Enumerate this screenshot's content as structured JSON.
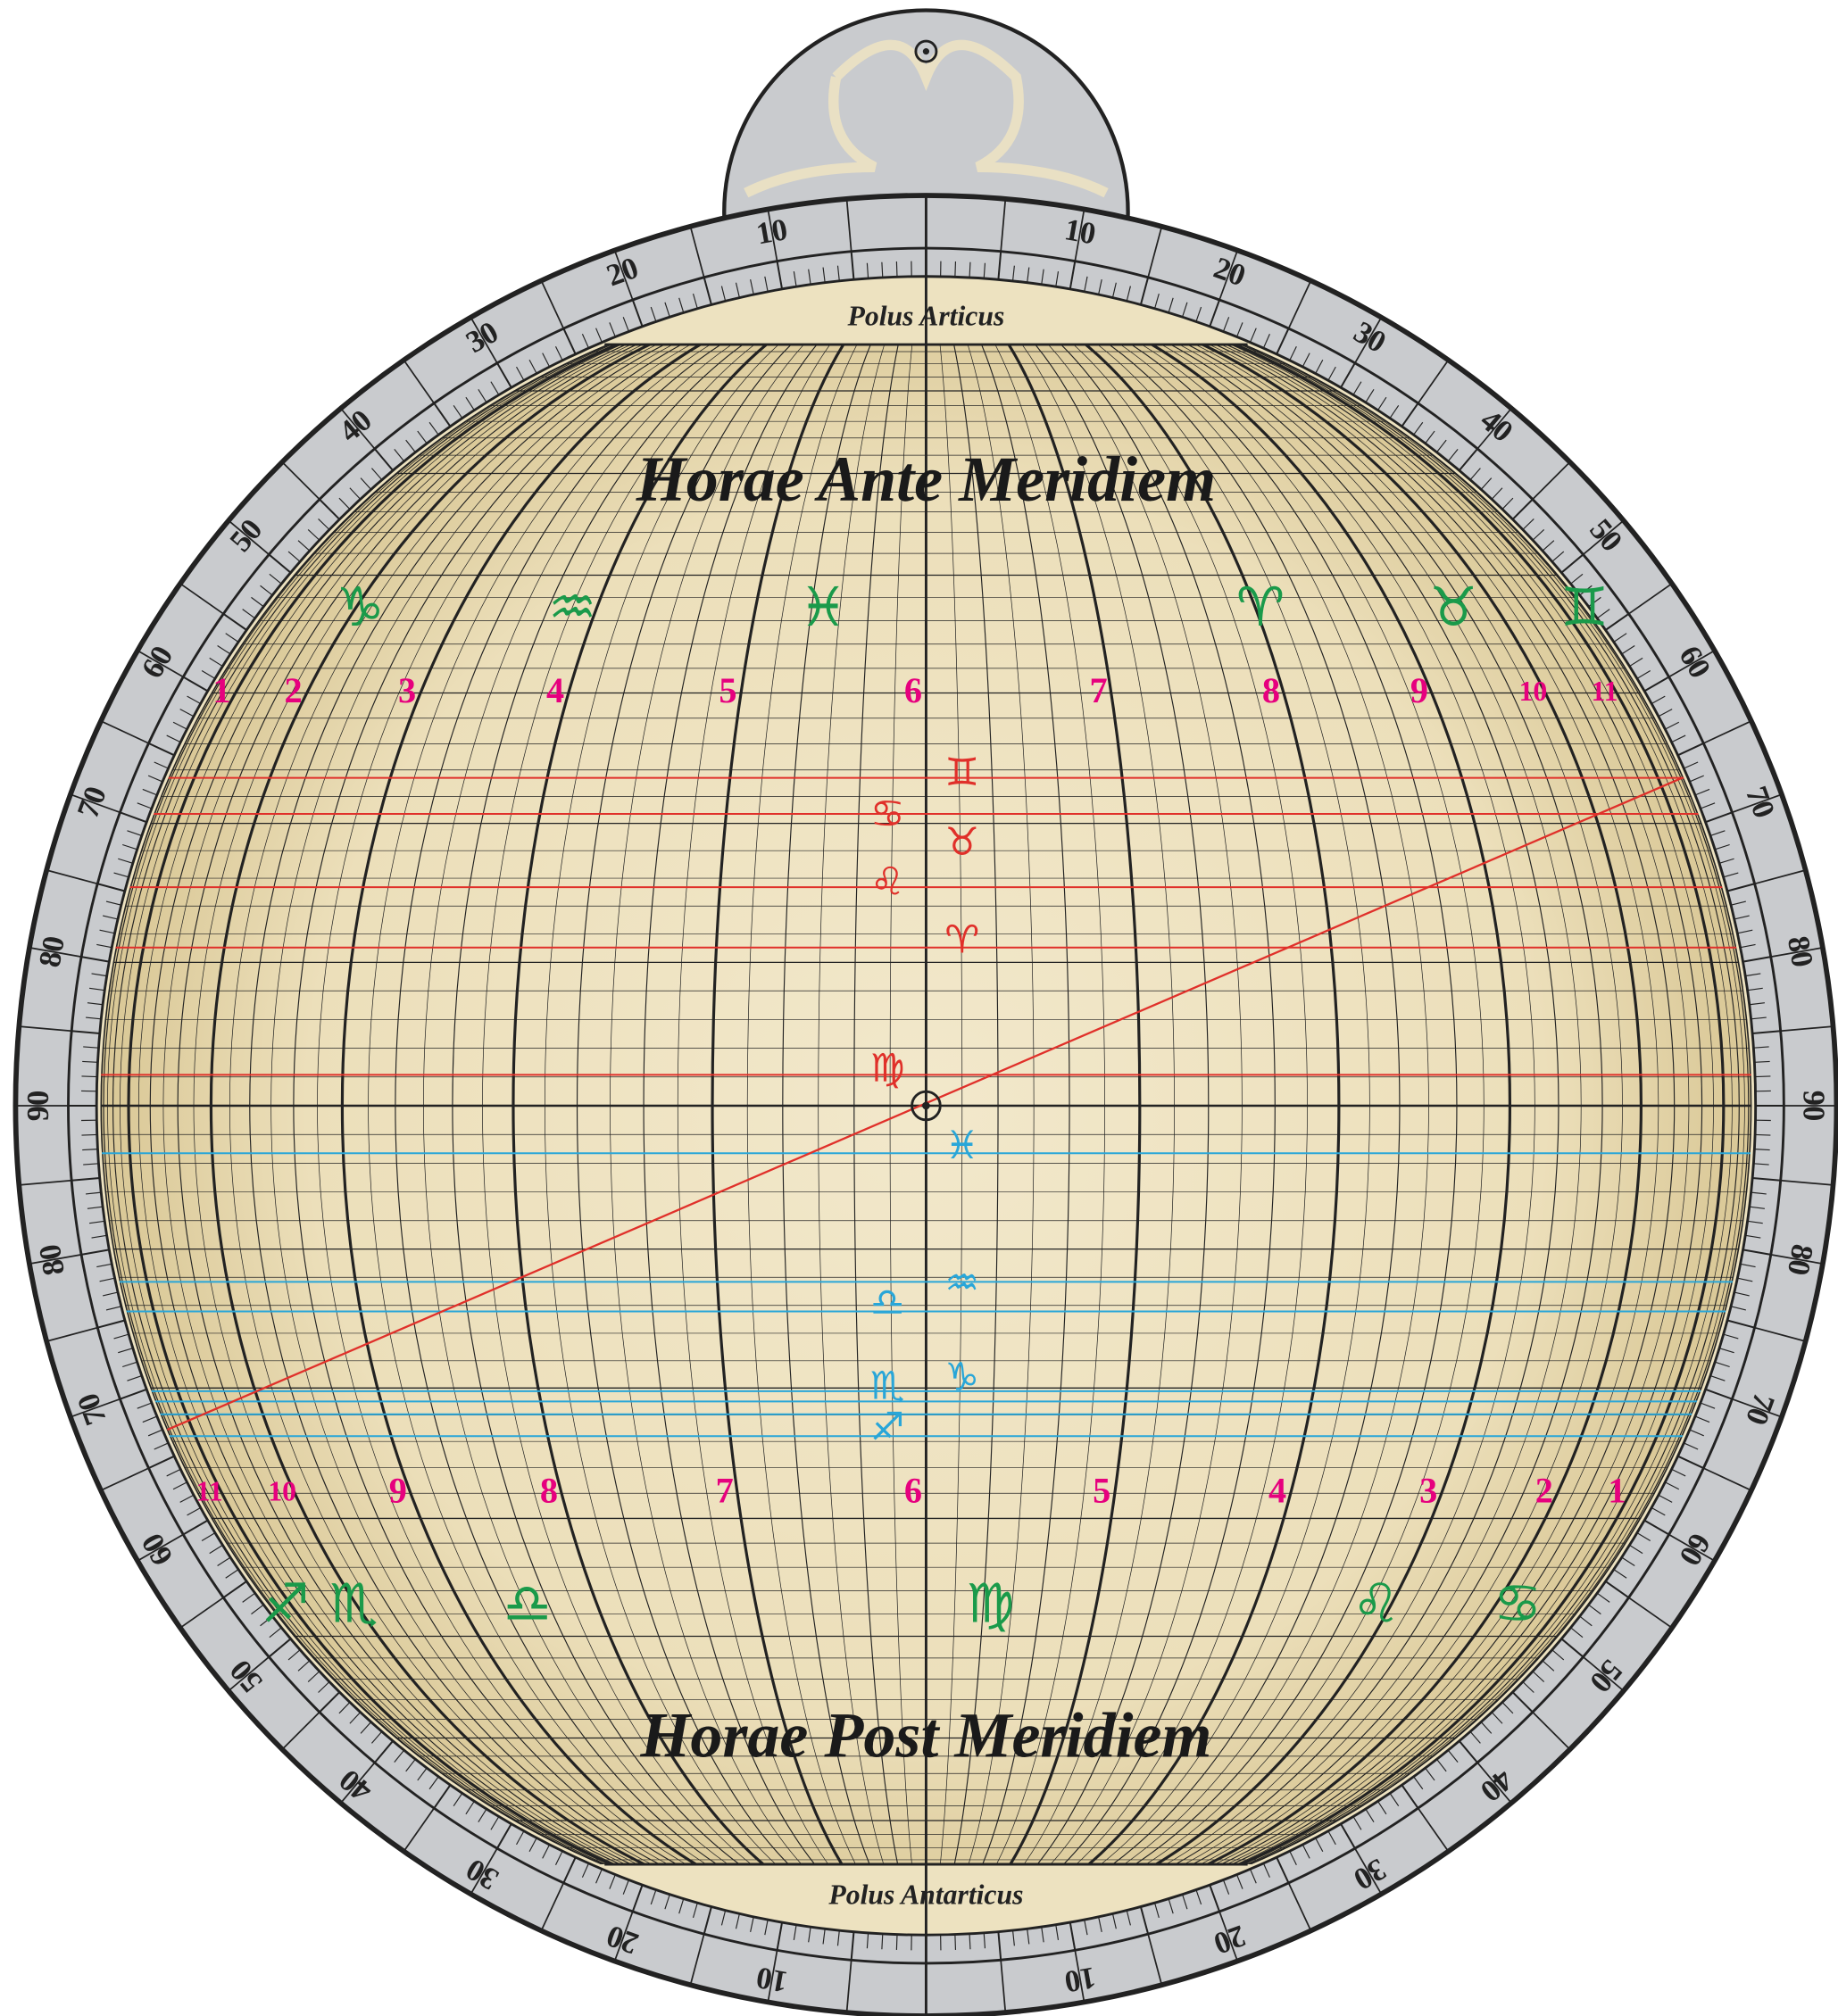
{
  "top_label": "Polus Articus",
  "bottom_label": "Polus Antarticus",
  "title_am": "Horae Ante Meridiem",
  "title_pm": "Horae Post Meridiem",
  "rim": {
    "upper_left": [
      10,
      20,
      30,
      40,
      50,
      60,
      70,
      80,
      90
    ],
    "lower_left": [
      10,
      20,
      30,
      40,
      50,
      60,
      70,
      80
    ],
    "upper_right": [
      10,
      20,
      30,
      40,
      50,
      60,
      70,
      80,
      90
    ],
    "lower_right": [
      10,
      20,
      30,
      40,
      50,
      60,
      70,
      80
    ]
  },
  "hours_am": [
    1,
    2,
    3,
    4,
    5,
    6,
    7,
    8,
    9,
    10,
    11
  ],
  "hours_pm": [
    11,
    10,
    9,
    8,
    7,
    6,
    5,
    4,
    3,
    2,
    1
  ],
  "zodiac_upper": [
    "♑",
    "♒",
    "♓",
    "♈",
    "♉",
    "♊"
  ],
  "zodiac_lower": [
    "♐",
    "♏",
    "♎",
    "♍",
    "♌",
    "♋"
  ],
  "ecliptic_north": [
    "♊",
    "♋",
    "♉",
    "♌",
    "♈",
    "♍"
  ],
  "ecliptic_south": [
    "♓",
    "♒",
    "♎",
    "♑",
    "♏",
    "♐"
  ]
}
